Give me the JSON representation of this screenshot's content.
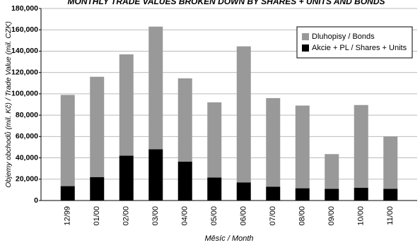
{
  "chart_data": {
    "type": "stacked_bar",
    "title": "MONTHLY TRADE VALUES BROKEN DOWN BY SHARES + UNITS AND BONDS",
    "y_label": "Objemy obchodů (mil. Kč) / Trade Value (mil. CZK)",
    "x_label": "Měsíc / Month",
    "categories": [
      "12/99",
      "01/00",
      "02/00",
      "03/00",
      "04/00",
      "05/00",
      "06/00",
      "07/00",
      "08/00",
      "09/00",
      "10/00",
      "11/00"
    ],
    "series": [
      {
        "name": "Akcie + PL / Shares + Units",
        "color": "#000000",
        "values": [
          13500,
          22000,
          42000,
          48000,
          36500,
          21500,
          17000,
          13000,
          11500,
          11000,
          12000,
          11000
        ]
      },
      {
        "name": "Dluhopisy / Bonds",
        "color": "#999999",
        "values": [
          85500,
          94000,
          95000,
          115000,
          78000,
          70500,
          127500,
          83000,
          77500,
          32500,
          77500,
          49000
        ]
      }
    ],
    "ylim": [
      0,
      180000
    ],
    "yticks": [
      0,
      {
        "value": 20000,
        "label": "20,000"
      },
      {
        "value": 40000,
        "label": "40,000"
      },
      {
        "value": 60000,
        "label": "60,000"
      },
      {
        "value": 80000,
        "label": "80,000"
      },
      {
        "value": 100000,
        "label": "100,000"
      },
      {
        "value": 120000,
        "label": "120,000"
      },
      {
        "value": 140000,
        "label": "140,000"
      },
      {
        "value": 160000,
        "label": "160,000"
      },
      {
        "value": 180000,
        "label": "180,000"
      }
    ],
    "grid": true
  }
}
